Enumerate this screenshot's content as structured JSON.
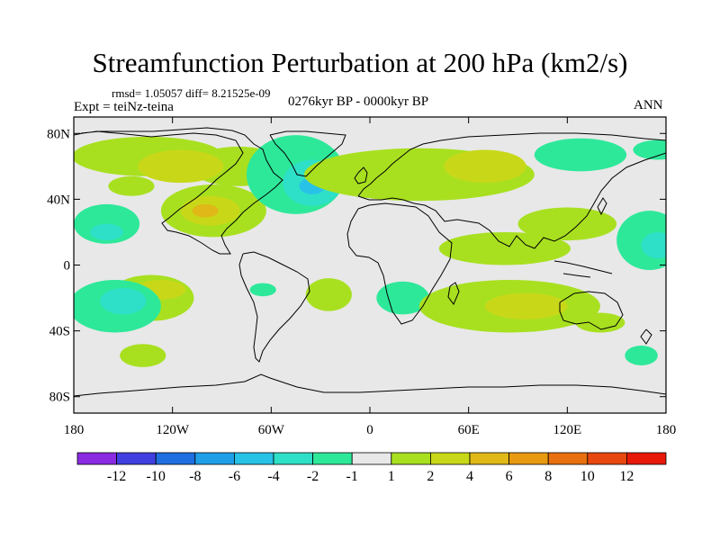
{
  "title": "Streamfunction Perturbation at 200 hPa (km2/s)",
  "stats": "rmsd= 1.05057 diff= 8.21525e-09",
  "experiment": "Expt = teiNz-teina",
  "period": "0276kyr BP - 0000kyr BP",
  "season": "ANN",
  "axes": {
    "lat_labels": [
      {
        "label": "80N",
        "lat": 80
      },
      {
        "label": "40N",
        "lat": 40
      },
      {
        "label": "0",
        "lat": 0
      },
      {
        "label": "40S",
        "lat": -40
      },
      {
        "label": "80S",
        "lat": -80
      }
    ],
    "lon_labels": [
      {
        "label": "180",
        "lon": -180
      },
      {
        "label": "120W",
        "lon": -120
      },
      {
        "label": "60W",
        "lon": -60
      },
      {
        "label": "0",
        "lon": 0
      },
      {
        "label": "60E",
        "lon": 60
      },
      {
        "label": "120E",
        "lon": 120
      },
      {
        "label": "180",
        "lon": 180
      }
    ]
  },
  "colorbar": {
    "colors": [
      "#8a2be2",
      "#4040e0",
      "#1f6fe0",
      "#1f9fe8",
      "#28c2e6",
      "#2ee0c8",
      "#2ee89a",
      "#e8e8e8",
      "#a8e020",
      "#c8d818",
      "#e0b818",
      "#e89a10",
      "#e87010",
      "#e84810",
      "#e81808"
    ],
    "labels": [
      "-12",
      "-10",
      "-8",
      "-6",
      "-4",
      "-2",
      "-1",
      "1",
      "2",
      "4",
      "6",
      "8",
      "10",
      "12"
    ]
  },
  "anomalies": [
    {
      "lon": -135,
      "lat": 66,
      "rx": 46,
      "ry": 12,
      "level": 1
    },
    {
      "lon": -80,
      "lat": 60,
      "rx": 30,
      "ry": 12,
      "level": 1
    },
    {
      "lon": -145,
      "lat": 48,
      "rx": 14,
      "ry": 6,
      "level": 1
    },
    {
      "lon": -115,
      "lat": 60,
      "rx": 26,
      "ry": 10,
      "level": 2
    },
    {
      "lon": -95,
      "lat": 33,
      "rx": 32,
      "ry": 16,
      "level": 1
    },
    {
      "lon": -97,
      "lat": 33,
      "rx": 18,
      "ry": 9,
      "level": 2
    },
    {
      "lon": -100,
      "lat": 33,
      "rx": 8,
      "ry": 4,
      "level": 3
    },
    {
      "lon": -160,
      "lat": 25,
      "rx": 20,
      "ry": 12,
      "level": -1
    },
    {
      "lon": -160,
      "lat": 20,
      "rx": 10,
      "ry": 5,
      "level": -2
    },
    {
      "lon": -133,
      "lat": -20,
      "rx": 26,
      "ry": 14,
      "level": 1
    },
    {
      "lon": -127,
      "lat": -15,
      "rx": 15,
      "ry": 6,
      "level": 2
    },
    {
      "lon": -155,
      "lat": -25,
      "rx": 28,
      "ry": 16,
      "level": -1
    },
    {
      "lon": -150,
      "lat": -22,
      "rx": 14,
      "ry": 8,
      "level": -2
    },
    {
      "lon": -138,
      "lat": -55,
      "rx": 14,
      "ry": 7,
      "level": 1
    },
    {
      "lon": -45,
      "lat": 55,
      "rx": 30,
      "ry": 24,
      "level": -1
    },
    {
      "lon": -35,
      "lat": 50,
      "rx": 18,
      "ry": 14,
      "level": -2
    },
    {
      "lon": -35,
      "lat": 48,
      "rx": 8,
      "ry": 5,
      "level": -3
    },
    {
      "lon": -65,
      "lat": -15,
      "rx": 8,
      "ry": 4,
      "level": -1
    },
    {
      "lon": -25,
      "lat": -18,
      "rx": 14,
      "ry": 10,
      "level": 1
    },
    {
      "lon": 30,
      "lat": 55,
      "rx": 70,
      "ry": 16,
      "level": 1
    },
    {
      "lon": 70,
      "lat": 60,
      "rx": 25,
      "ry": 10,
      "level": 2
    },
    {
      "lon": 128,
      "lat": 67,
      "rx": 28,
      "ry": 10,
      "level": -1
    },
    {
      "lon": 20,
      "lat": -20,
      "rx": 16,
      "ry": 10,
      "level": -1
    },
    {
      "lon": 82,
      "lat": 10,
      "rx": 40,
      "ry": 10,
      "level": 1
    },
    {
      "lon": 120,
      "lat": 25,
      "rx": 30,
      "ry": 10,
      "level": 1
    },
    {
      "lon": 85,
      "lat": -25,
      "rx": 55,
      "ry": 16,
      "level": 1
    },
    {
      "lon": 95,
      "lat": -25,
      "rx": 25,
      "ry": 8,
      "level": 2
    },
    {
      "lon": 140,
      "lat": -35,
      "rx": 15,
      "ry": 6,
      "level": 1
    },
    {
      "lon": 170,
      "lat": 15,
      "rx": 20,
      "ry": 18,
      "level": -1
    },
    {
      "lon": 175,
      "lat": 12,
      "rx": 10,
      "ry": 8,
      "level": -2
    },
    {
      "lon": 165,
      "lat": -55,
      "rx": 10,
      "ry": 6,
      "level": -1
    },
    {
      "lon": 175,
      "lat": 70,
      "rx": 15,
      "ry": 6,
      "level": -1
    }
  ]
}
